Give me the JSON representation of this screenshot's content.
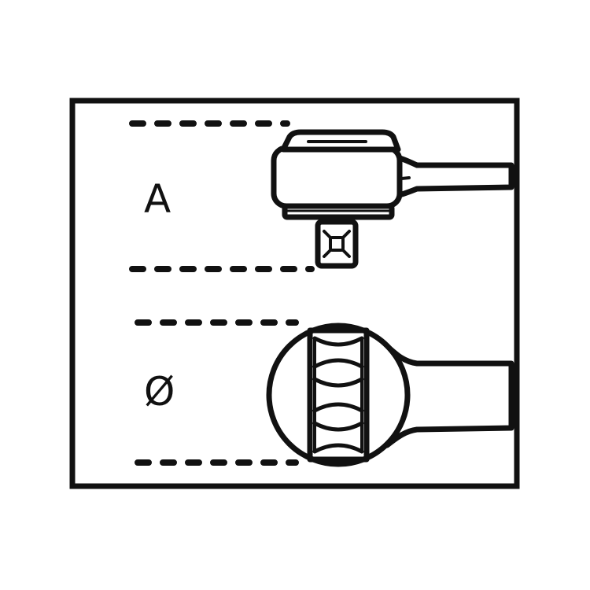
{
  "diagram": {
    "labels": {
      "square_drive_height": "A",
      "ring_diameter": "Ø"
    },
    "colors": {
      "stroke": "#111111",
      "background": "#ffffff"
    },
    "icons": [
      "ratchet-head-side-view-icon",
      "ring-end-front-view-icon"
    ]
  }
}
